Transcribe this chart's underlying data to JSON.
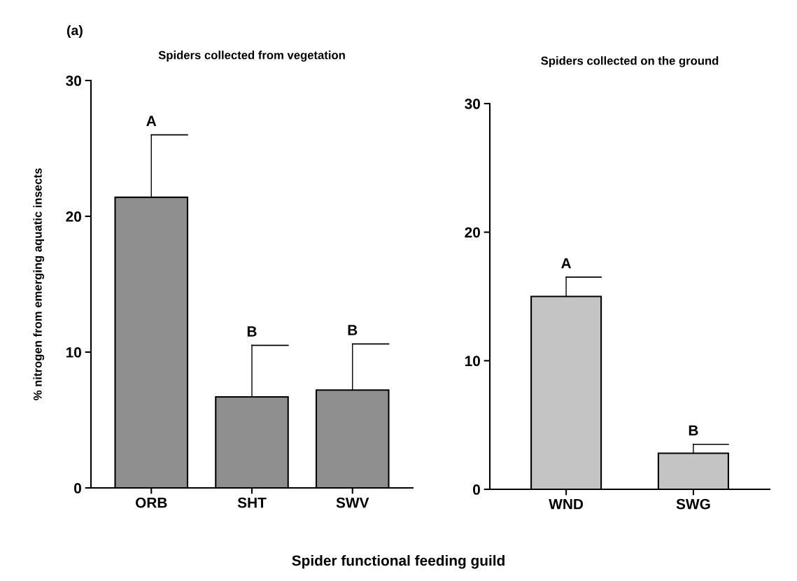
{
  "chart_data": [
    {
      "type": "bar",
      "title": "Spiders collected from vegetation",
      "ylabel": "% nitrogen from emerging aquatic insects",
      "xlabel": "Spider functional feeding guild",
      "categories": [
        "ORB",
        "SHT",
        "SWV"
      ],
      "values": [
        21.4,
        6.7,
        7.2
      ],
      "errors": [
        [
          21.4,
          26.0
        ],
        [
          6.7,
          10.5
        ],
        [
          7.2,
          10.6
        ]
      ],
      "color": "#8f8f8f",
      "ylim": [
        0,
        30
      ],
      "yticks": [
        0,
        10,
        20,
        30
      ],
      "grid": false,
      "legend": false,
      "annotations": [
        "(a)",
        {
          "text": "A",
          "x": "ORB",
          "y": 26.0
        },
        {
          "text": "B",
          "x": "SHT",
          "y": 10.5
        },
        {
          "text": "B",
          "x": "SWV",
          "y": 10.6
        }
      ]
    },
    {
      "type": "bar",
      "title": "Spiders collected on the ground",
      "categories": [
        "WND",
        "SWG"
      ],
      "values": [
        15.0,
        2.8
      ],
      "errors": [
        [
          15.0,
          16.5
        ],
        [
          2.8,
          3.5
        ]
      ],
      "color": "#c4c4c4",
      "ylim": [
        0,
        30
      ],
      "yticks": [
        0,
        10,
        20,
        30
      ],
      "grid": false,
      "legend": false,
      "annotations": [
        {
          "text": "A",
          "x": "WND",
          "y": 16.5
        },
        {
          "text": "B",
          "x": "SWG",
          "y": 3.5
        }
      ]
    }
  ]
}
